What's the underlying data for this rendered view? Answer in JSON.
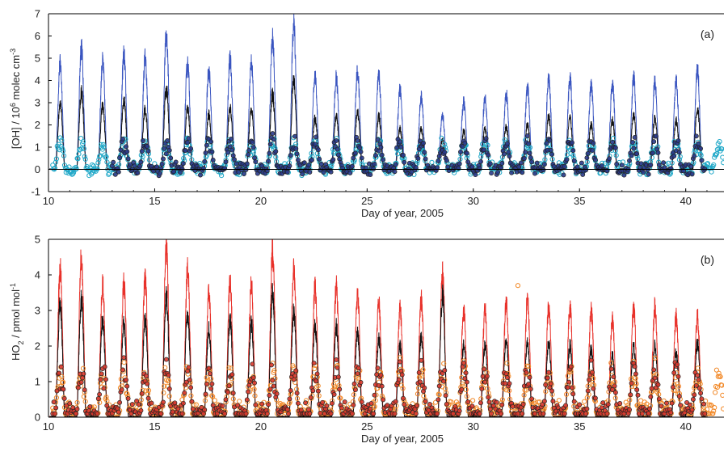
{
  "chart_data": [
    {
      "type": "line",
      "panel_label": "(a)",
      "xlabel": "Day of year, 2005",
      "ylabel_main": "[OH] / 10",
      "ylabel_sup": "6",
      "ylabel_rest": " molec cm",
      "ylabel_sup2": "-3",
      "xlim": [
        10,
        41.8
      ],
      "ylim": [
        -1,
        7
      ],
      "xticks": [
        "10",
        "15",
        "20",
        "25",
        "30",
        "35",
        "40"
      ],
      "yticks": [
        "-1",
        "0",
        "1",
        "2",
        "3",
        "4",
        "5",
        "6",
        "7"
      ],
      "zero_line": true,
      "series": [
        {
          "style": "line",
          "color": "#3a55c0",
          "daily_peaks": [
            {
              "day": 10.55,
              "value": 5.2
            },
            {
              "day": 11.55,
              "value": 6.0
            },
            {
              "day": 12.55,
              "value": 5.3
            },
            {
              "day": 13.55,
              "value": 5.6
            },
            {
              "day": 14.55,
              "value": 5.5
            },
            {
              "day": 15.55,
              "value": 6.6
            },
            {
              "day": 16.55,
              "value": 5.2
            },
            {
              "day": 17.55,
              "value": 4.9
            },
            {
              "day": 18.55,
              "value": 5.4
            },
            {
              "day": 19.55,
              "value": 5.3
            },
            {
              "day": 20.55,
              "value": 6.4
            },
            {
              "day": 21.55,
              "value": 7.1
            },
            {
              "day": 22.55,
              "value": 4.6
            },
            {
              "day": 23.55,
              "value": 4.5
            },
            {
              "day": 24.55,
              "value": 4.8
            },
            {
              "day": 25.55,
              "value": 4.6
            },
            {
              "day": 26.55,
              "value": 3.9
            },
            {
              "day": 27.55,
              "value": 3.6
            },
            {
              "day": 28.55,
              "value": 2.6
            },
            {
              "day": 29.55,
              "value": 3.3
            },
            {
              "day": 30.55,
              "value": 3.5
            },
            {
              "day": 31.55,
              "value": 3.7
            },
            {
              "day": 32.55,
              "value": 4.0
            },
            {
              "day": 33.55,
              "value": 4.5
            },
            {
              "day": 34.55,
              "value": 4.5
            },
            {
              "day": 35.55,
              "value": 4.1
            },
            {
              "day": 36.55,
              "value": 4.2
            },
            {
              "day": 37.55,
              "value": 4.5
            },
            {
              "day": 38.55,
              "value": 4.3
            },
            {
              "day": 39.55,
              "value": 4.3
            },
            {
              "day": 40.55,
              "value": 4.9
            }
          ]
        },
        {
          "style": "line",
          "color": "#111111",
          "daily_peaks": [
            {
              "day": 10.55,
              "value": 3.2
            },
            {
              "day": 11.55,
              "value": 3.8
            },
            {
              "day": 12.55,
              "value": 3.1
            },
            {
              "day": 13.55,
              "value": 3.4
            },
            {
              "day": 14.55,
              "value": 3.0
            },
            {
              "day": 15.55,
              "value": 4.0
            },
            {
              "day": 16.55,
              "value": 3.0
            },
            {
              "day": 17.55,
              "value": 2.7
            },
            {
              "day": 18.55,
              "value": 3.0
            },
            {
              "day": 19.55,
              "value": 3.0
            },
            {
              "day": 20.55,
              "value": 3.7
            },
            {
              "day": 21.55,
              "value": 4.4
            },
            {
              "day": 22.55,
              "value": 2.5
            },
            {
              "day": 23.55,
              "value": 2.6
            },
            {
              "day": 24.55,
              "value": 2.8
            },
            {
              "day": 25.55,
              "value": 2.6
            },
            {
              "day": 26.55,
              "value": 2.0
            },
            {
              "day": 27.55,
              "value": 2.0
            },
            {
              "day": 28.55,
              "value": 1.5
            },
            {
              "day": 29.55,
              "value": 1.9
            },
            {
              "day": 30.55,
              "value": 2.0
            },
            {
              "day": 31.55,
              "value": 2.1
            },
            {
              "day": 32.55,
              "value": 2.2
            },
            {
              "day": 33.55,
              "value": 2.6
            },
            {
              "day": 34.55,
              "value": 2.5
            },
            {
              "day": 35.55,
              "value": 2.2
            },
            {
              "day": 36.55,
              "value": 2.4
            },
            {
              "day": 37.55,
              "value": 2.7
            },
            {
              "day": 38.55,
              "value": 2.5
            },
            {
              "day": 39.55,
              "value": 2.4
            },
            {
              "day": 40.55,
              "value": 3.0
            }
          ]
        },
        {
          "style": "open-circles",
          "color": "#20a8c8",
          "typical_daily_max": 1.3,
          "days": [
            10.2,
            41.8
          ]
        },
        {
          "style": "filled-circles",
          "color": "#2a3a8a",
          "typical_daily_max": 1.4,
          "days": [
            13.0,
            40.9
          ]
        }
      ]
    },
    {
      "type": "line",
      "panel_label": "(b)",
      "xlabel": "Day of year, 2005",
      "ylabel_main": "HO",
      "ylabel_sub": "2",
      "ylabel_rest": " / pmol mol",
      "ylabel_sup2": "-1",
      "xlim": [
        10,
        41.8
      ],
      "ylim": [
        0,
        5
      ],
      "xticks": [
        "10",
        "15",
        "20",
        "25",
        "30",
        "35",
        "40"
      ],
      "yticks": [
        "0",
        "1",
        "2",
        "3",
        "4",
        "5"
      ],
      "zero_line": true,
      "series": [
        {
          "style": "line",
          "color": "#e8312a",
          "daily_peaks": [
            {
              "day": 10.55,
              "value": 4.6
            },
            {
              "day": 11.55,
              "value": 4.9
            },
            {
              "day": 12.55,
              "value": 4.1
            },
            {
              "day": 13.55,
              "value": 4.1
            },
            {
              "day": 14.55,
              "value": 4.3
            },
            {
              "day": 15.55,
              "value": 5.2
            },
            {
              "day": 16.55,
              "value": 4.5
            },
            {
              "day": 17.55,
              "value": 3.8
            },
            {
              "day": 18.55,
              "value": 4.2
            },
            {
              "day": 19.55,
              "value": 4.1
            },
            {
              "day": 20.55,
              "value": 5.1
            },
            {
              "day": 21.55,
              "value": 4.6
            },
            {
              "day": 22.55,
              "value": 4.0
            },
            {
              "day": 23.55,
              "value": 4.0
            },
            {
              "day": 24.55,
              "value": 3.8
            },
            {
              "day": 25.55,
              "value": 3.5
            },
            {
              "day": 26.55,
              "value": 3.4
            },
            {
              "day": 27.55,
              "value": 3.6
            },
            {
              "day": 28.55,
              "value": 4.4
            },
            {
              "day": 29.55,
              "value": 3.3
            },
            {
              "day": 30.55,
              "value": 3.3
            },
            {
              "day": 31.55,
              "value": 3.5
            },
            {
              "day": 32.55,
              "value": 3.6
            },
            {
              "day": 33.55,
              "value": 3.4
            },
            {
              "day": 34.55,
              "value": 3.4
            },
            {
              "day": 35.55,
              "value": 3.3
            },
            {
              "day": 36.55,
              "value": 3.0
            },
            {
              "day": 37.55,
              "value": 3.4
            },
            {
              "day": 38.55,
              "value": 3.4
            },
            {
              "day": 39.55,
              "value": 3.1
            },
            {
              "day": 40.55,
              "value": 3.1
            }
          ]
        },
        {
          "style": "line",
          "color": "#111111",
          "daily_peaks": [
            {
              "day": 10.55,
              "value": 3.5
            },
            {
              "day": 11.55,
              "value": 3.6
            },
            {
              "day": 12.55,
              "value": 3.0
            },
            {
              "day": 13.55,
              "value": 2.9
            },
            {
              "day": 14.55,
              "value": 3.0
            },
            {
              "day": 15.55,
              "value": 3.7
            },
            {
              "day": 16.55,
              "value": 3.2
            },
            {
              "day": 17.55,
              "value": 2.7
            },
            {
              "day": 18.55,
              "value": 3.0
            },
            {
              "day": 19.55,
              "value": 2.9
            },
            {
              "day": 20.55,
              "value": 3.8
            },
            {
              "day": 21.55,
              "value": 3.3
            },
            {
              "day": 22.55,
              "value": 2.8
            },
            {
              "day": 23.55,
              "value": 2.8
            },
            {
              "day": 24.55,
              "value": 2.6
            },
            {
              "day": 25.55,
              "value": 2.4
            },
            {
              "day": 26.55,
              "value": 2.2
            },
            {
              "day": 27.55,
              "value": 2.5
            },
            {
              "day": 28.55,
              "value": 3.8
            },
            {
              "day": 29.55,
              "value": 2.2
            },
            {
              "day": 30.55,
              "value": 2.2
            },
            {
              "day": 31.55,
              "value": 2.4
            },
            {
              "day": 32.55,
              "value": 2.3
            },
            {
              "day": 33.55,
              "value": 2.3
            },
            {
              "day": 34.55,
              "value": 2.2
            },
            {
              "day": 35.55,
              "value": 2.1
            },
            {
              "day": 36.55,
              "value": 1.9
            },
            {
              "day": 37.55,
              "value": 2.2
            },
            {
              "day": 38.55,
              "value": 2.2
            },
            {
              "day": 39.55,
              "value": 2.0
            },
            {
              "day": 40.55,
              "value": 2.3
            }
          ]
        },
        {
          "style": "open-circles",
          "color": "#f28a2a",
          "typical_daily_max": 1.4,
          "outlier": {
            "day": 32.1,
            "value": 3.7
          },
          "days": [
            10.2,
            41.8
          ]
        },
        {
          "style": "filled-circles",
          "color": "#d8382e",
          "typical_daily_max": 1.5,
          "days": [
            10.2,
            40.9
          ]
        }
      ]
    }
  ]
}
